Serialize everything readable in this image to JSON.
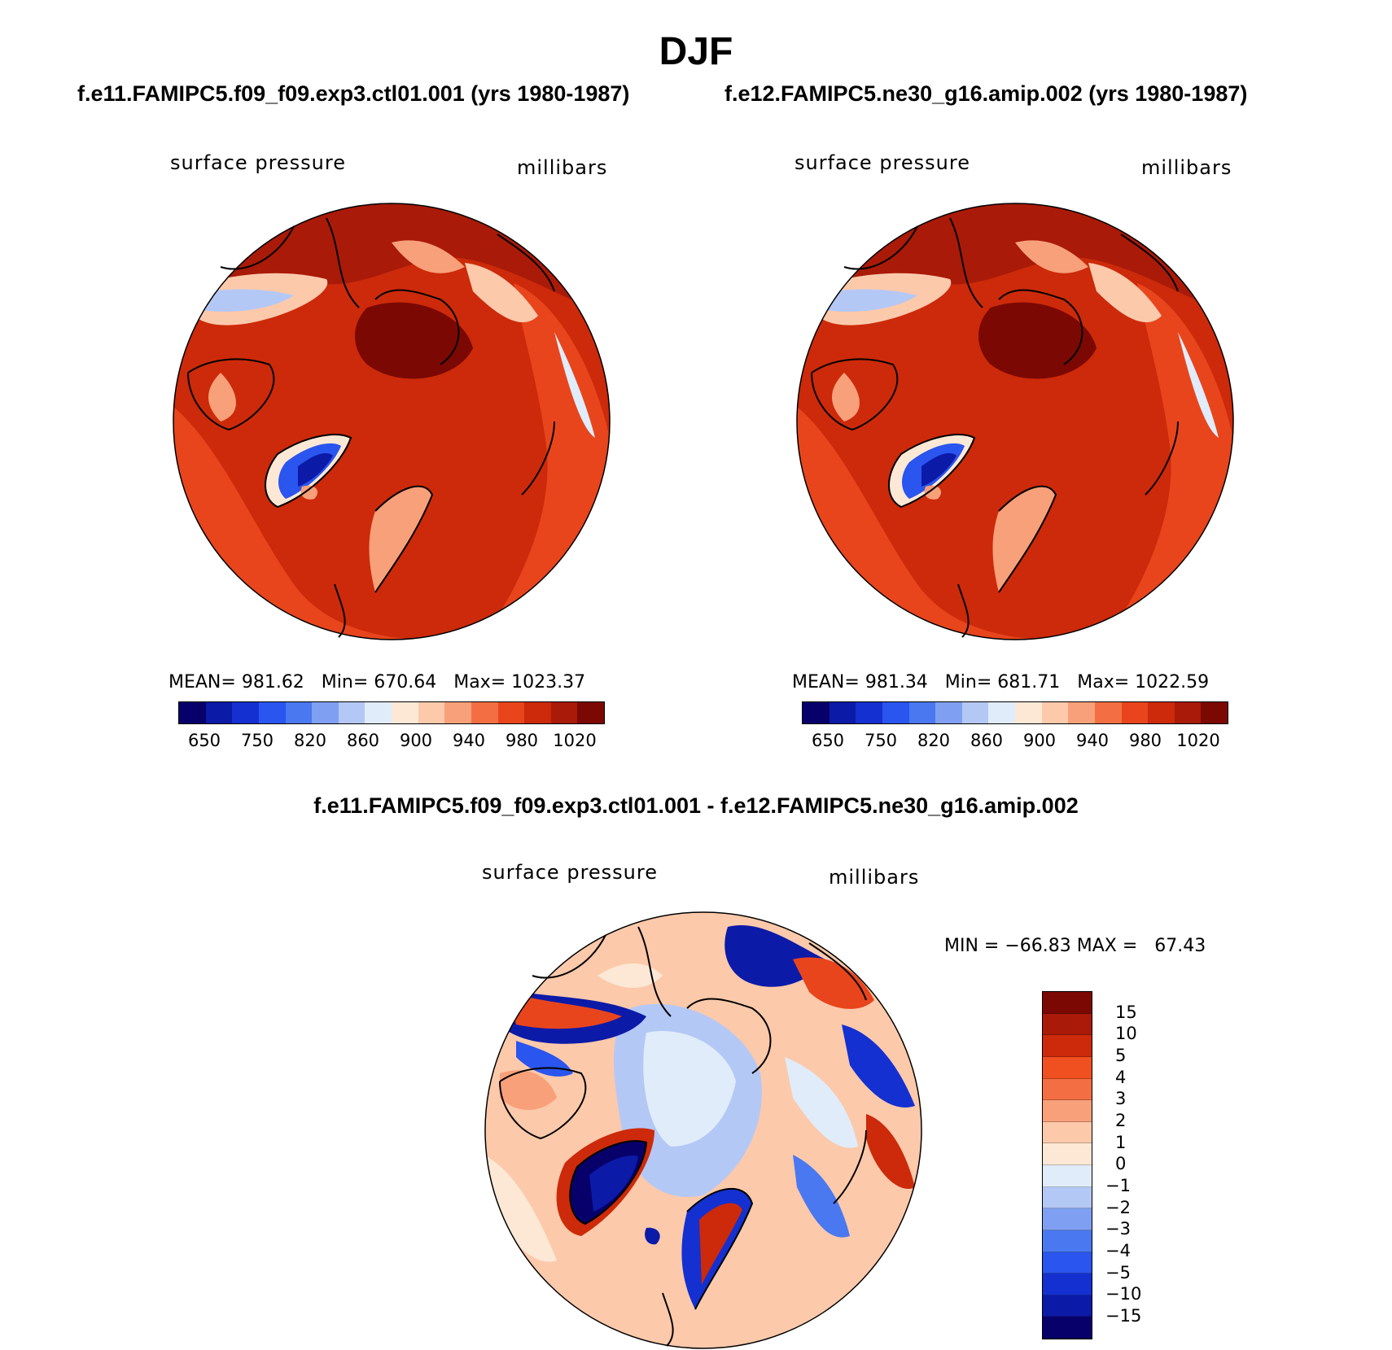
{
  "main_title": "DJF",
  "panels": [
    {
      "case_title": "f.e11.FAMIPC5.f09_f09.exp3.ctl01.001 (yrs 1980-1987)",
      "variable": "surface pressure",
      "units": "millibars",
      "mean_label": "MEAN=",
      "mean_value": "981.62",
      "min_label": "Min=",
      "min_value": "670.64",
      "max_label": "Max=",
      "max_value": "1023.37"
    },
    {
      "case_title": "f.e12.FAMIPC5.ne30_g16.amip.002 (yrs 1980-1987)",
      "variable": "surface pressure",
      "units": "millibars",
      "mean_label": "MEAN=",
      "mean_value": "981.34",
      "min_label": "Min=",
      "min_value": "681.71",
      "max_label": "Max=",
      "max_value": "1022.59"
    }
  ],
  "abs_colorbar": {
    "colors": [
      "#08006a",
      "#0c1aa8",
      "#1430d0",
      "#2a55ee",
      "#4a78f0",
      "#7fa0f2",
      "#b4c8f6",
      "#e0ecfa",
      "#fde8d6",
      "#fcc9ab",
      "#f8a07a",
      "#f36f43",
      "#e8451d",
      "#cc2a0a",
      "#a91a08",
      "#7c0804"
    ],
    "tick_labels": [
      "650",
      "750",
      "820",
      "860",
      "900",
      "940",
      "980",
      "1020"
    ]
  },
  "diff_panel": {
    "title": "f.e11.FAMIPC5.f09_f09.exp3.ctl01.001 - f.e12.FAMIPC5.ne30_g16.amip.002",
    "variable": "surface pressure",
    "units": "millibars",
    "minmax_text": "MIN = −66.83 MAX =   67.43",
    "colorbar": {
      "colors": [
        "#7c0804",
        "#a91a08",
        "#cc2a0a",
        "#f05020",
        "#f36f43",
        "#f8a07a",
        "#fcc9ab",
        "#fde8d6",
        "#e0ecfa",
        "#b4c8f6",
        "#7fa0f2",
        "#4a78f0",
        "#2a55ee",
        "#1430d0",
        "#0c1aa8",
        "#08006a"
      ],
      "tick_labels": [
        "15",
        "10",
        "5",
        "4",
        "3",
        "2",
        "1",
        "0",
        "−1",
        "−2",
        "−3",
        "−4",
        "−5",
        "−10",
        "−15"
      ]
    }
  }
}
